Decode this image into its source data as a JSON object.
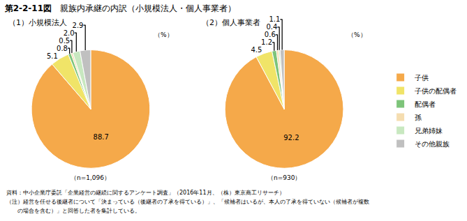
{
  "title": "第2-2-11図",
  "subtitle": "親族内承継の内訳（小規模法人・個人事業者）",
  "annotations": [
    "資料：中小企業庁委託「企業経営の継続に関するアンケート調査」（2016年11月、（株）東京商工リサーチ）",
    "（注）経営を任せる後継者について「決まっている（後継者の了承を得ている）」、「候補者はいるが、本人の了承を得ていない（候補者が複数",
    "　　の場合を含む）」と回答した者を集計している。"
  ],
  "chart_data": [
    {
      "type": "pie",
      "title": "（1）小規模法人",
      "categories": [
        "子供",
        "子供の配偶者",
        "配偶者",
        "孫",
        "兄弟姉妹",
        "その他親族"
      ],
      "values": [
        88.7,
        5.1,
        0.8,
        0.5,
        2.0,
        2.9
      ],
      "value_labels": [
        "88.7",
        "5.1",
        "0.8",
        "0.5",
        "2.0",
        "2.9"
      ],
      "colors": [
        "#F5A94A",
        "#F0E468",
        "#7DC47A",
        "#F5DDB0",
        "#C8E8C0",
        "#C0C0C0"
      ],
      "data_labels": true,
      "legend": "right",
      "annotations": [
        "（%）",
        "（n=1,096）"
      ]
    },
    {
      "type": "pie",
      "title": "（2）個人事業者",
      "categories": [
        "子供",
        "子供の配偶者",
        "配偶者",
        "孫",
        "兄弟姉妹",
        "その他親族"
      ],
      "values": [
        92.2,
        4.5,
        1.2,
        0.6,
        0.4,
        1.1
      ],
      "value_labels": [
        "92.2",
        "4.5",
        "1.2",
        "0.6",
        "0.4",
        "1.1"
      ],
      "colors": [
        "#F5A94A",
        "#F0E468",
        "#7DC47A",
        "#F5DDB0",
        "#C8E8C0",
        "#C0C0C0"
      ],
      "data_labels": true,
      "legend": "right",
      "annotations": [
        "（%）",
        "（n=930）"
      ]
    }
  ]
}
